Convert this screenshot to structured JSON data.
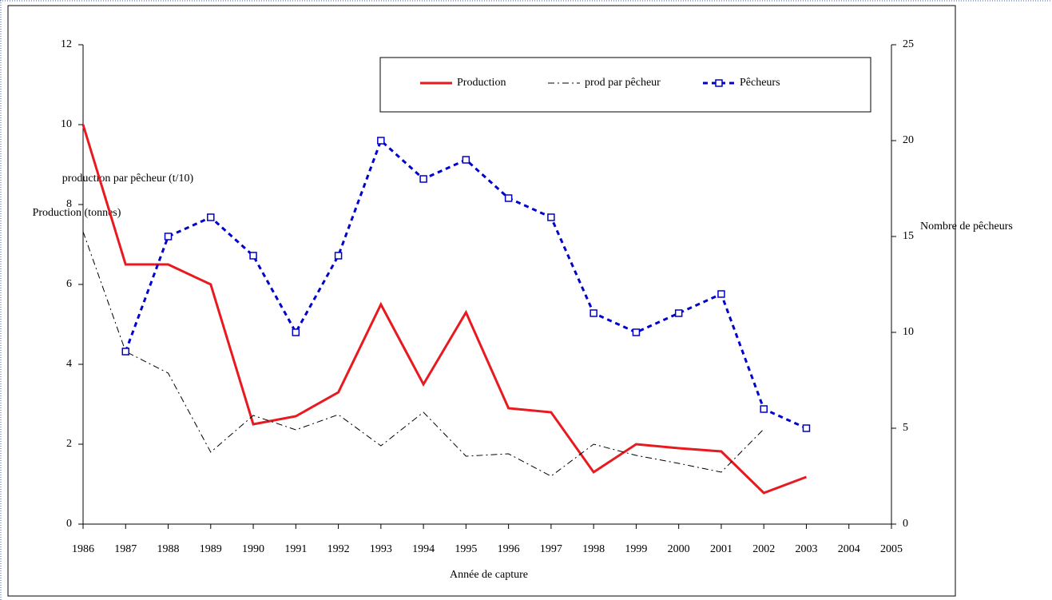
{
  "chart_data": {
    "type": "line",
    "x_label": "Année de capture",
    "y_label": "Production (tonnes)",
    "y_label_secondary": "production par pêcheur (t/10)",
    "y2_label": "Nombre de pêcheurs",
    "x": [
      1986,
      1987,
      1988,
      1989,
      1990,
      1991,
      1992,
      1993,
      1994,
      1995,
      1996,
      1997,
      1998,
      1999,
      2000,
      2001,
      2002,
      2003
    ],
    "xlim": [
      1986,
      2005
    ],
    "xticks": [
      1986,
      1987,
      1988,
      1989,
      1990,
      1991,
      1992,
      1993,
      1994,
      1995,
      1996,
      1997,
      1998,
      1999,
      2000,
      2001,
      2002,
      2003,
      2004,
      2005
    ],
    "ylim": [
      0,
      12
    ],
    "yticks": [
      0,
      2,
      4,
      6,
      8,
      10,
      12
    ],
    "y2lim": [
      0,
      25
    ],
    "y2ticks": [
      0,
      5,
      10,
      15,
      20,
      25
    ],
    "grid": false,
    "legend": "top",
    "series": [
      {
        "name": "Production",
        "color": "#e8191f",
        "linestyle": "solid",
        "width": 3,
        "axis": "y",
        "values": [
          10,
          6.5,
          6.5,
          6.0,
          2.5,
          2.7,
          3.3,
          5.5,
          3.5,
          5.3,
          2.9,
          2.8,
          1.3,
          2.0,
          1.9,
          1.82,
          0.78,
          1.18
        ]
      },
      {
        "name": "prod par pêcheur",
        "color": "#000000",
        "linestyle": "dashdot",
        "width": 1,
        "axis": "y",
        "values": [
          7.32,
          4.32,
          3.78,
          1.8,
          2.72,
          2.36,
          2.74,
          1.96,
          2.8,
          1.7,
          1.76,
          1.2,
          2.0,
          1.72,
          1.52,
          1.3,
          2.38,
          null
        ]
      },
      {
        "name": "Pêcheurs",
        "color": "#0000cc",
        "linestyle": "dash",
        "width": 3,
        "marker": "square",
        "axis": "y2",
        "values": [
          null,
          9,
          15,
          16,
          14,
          10,
          14,
          20,
          18,
          19,
          17,
          16,
          11,
          10,
          11,
          12,
          6,
          5
        ]
      }
    ]
  }
}
